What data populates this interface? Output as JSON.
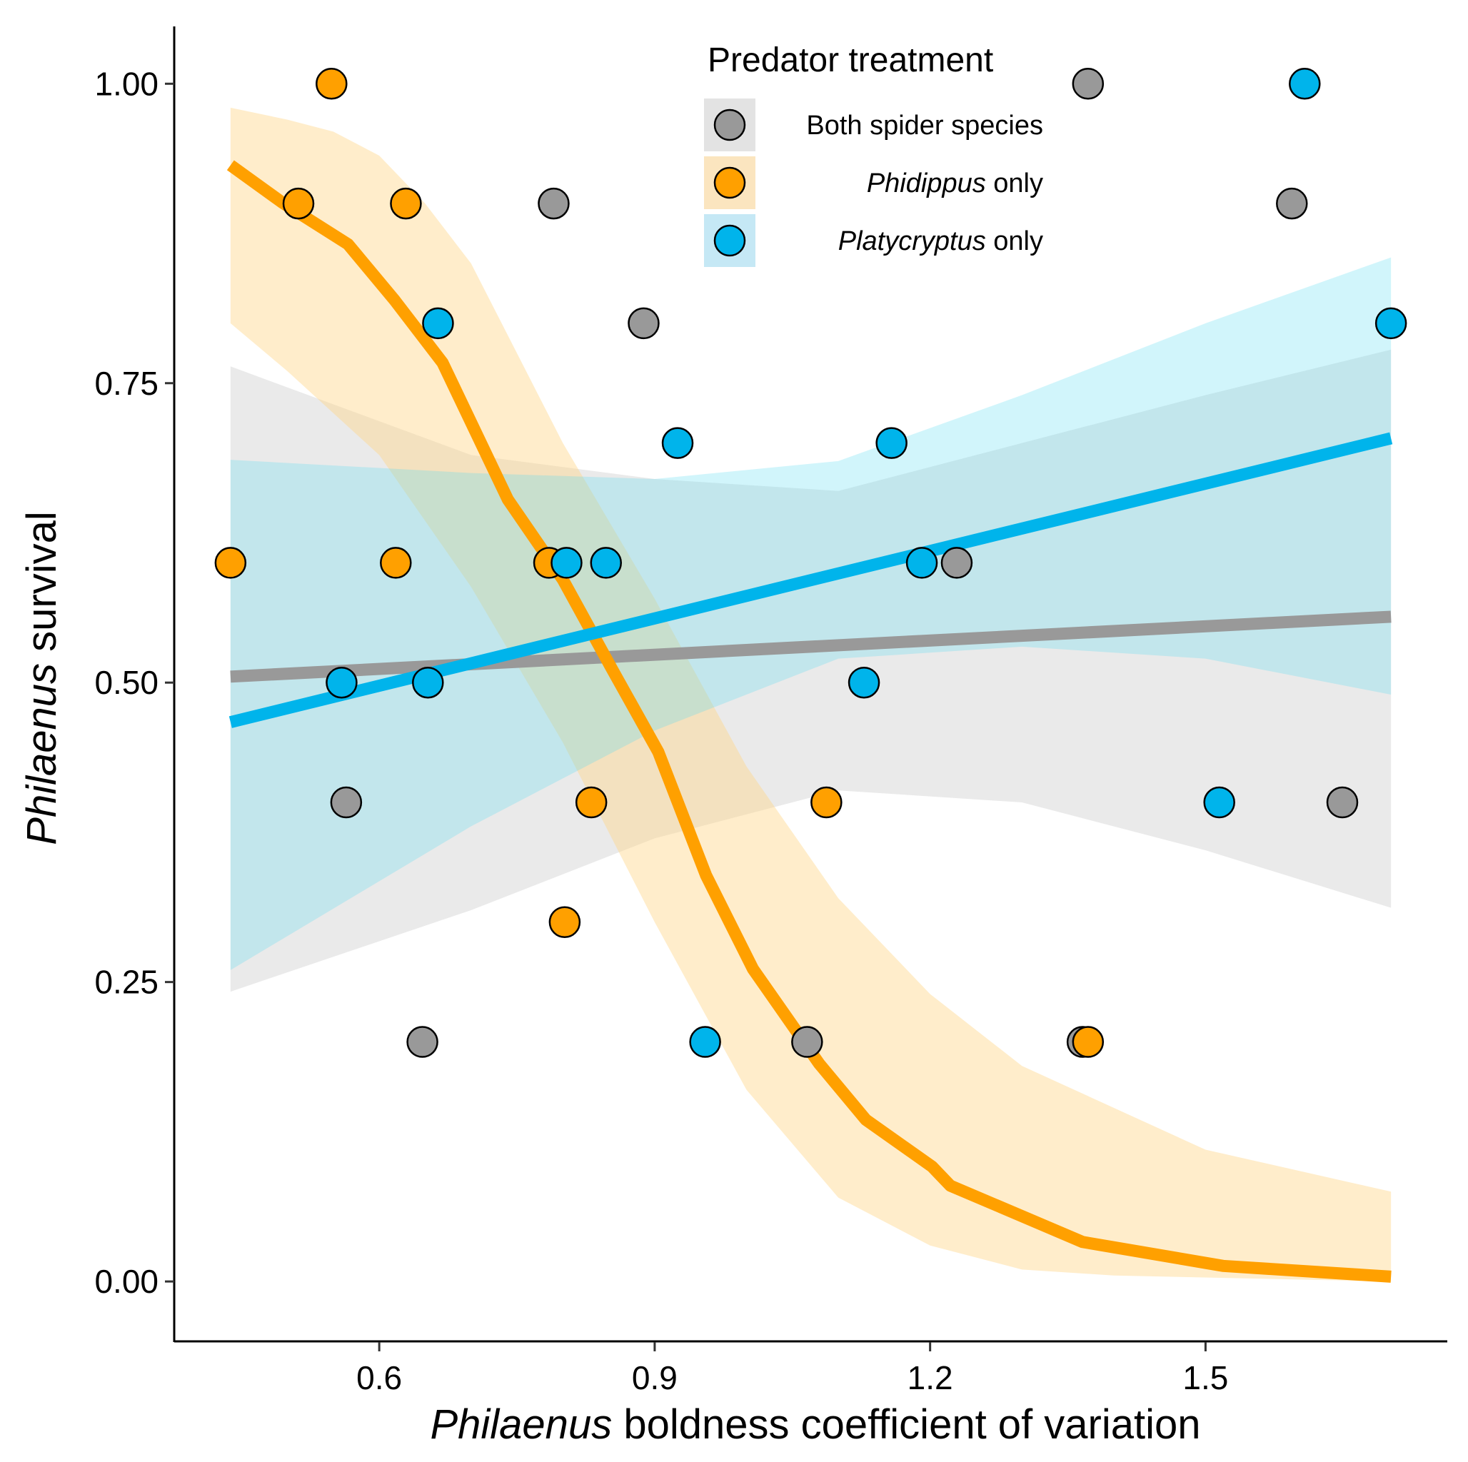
{
  "chart_data": {
    "type": "scatter",
    "title": "",
    "xlabel_italic": "Philaenus",
    "xlabel_rest": " boldness coefficient of variation",
    "ylabel_italic": "Philaenus",
    "ylabel_rest": " survival",
    "xlim": [
      0.377,
      1.763
    ],
    "ylim": [
      -0.05,
      1.048
    ],
    "xticks": [
      0.6,
      0.9,
      1.2,
      1.5
    ],
    "xtick_labels": [
      "0.6",
      "0.9",
      "1.2",
      "1.5"
    ],
    "yticks": [
      0,
      0.25,
      0.5,
      0.75,
      1.0
    ],
    "ytick_labels": [
      "0.00",
      "0.25",
      "0.50",
      "0.75",
      "1.00"
    ],
    "grid": false,
    "legend": {
      "title": "Predator treatment",
      "placement": "top-right",
      "items": [
        {
          "italic": "",
          "rest": "Both spider species"
        },
        {
          "italic": "Phidippus",
          "rest": " only"
        },
        {
          "italic": "Platycryptus",
          "rest": " only"
        }
      ]
    },
    "series": [
      {
        "name": "Both spider species",
        "color": "#999999",
        "band_color": "rgba(200,200,200,0.38)",
        "points": [
          [
            1.372,
            1.0
          ],
          [
            0.79,
            0.9
          ],
          [
            1.594,
            0.9
          ],
          [
            0.888,
            0.8
          ],
          [
            1.229,
            0.6
          ],
          [
            0.564,
            0.4
          ],
          [
            1.649,
            0.4
          ],
          [
            0.647,
            0.2
          ],
          [
            1.066,
            0.2
          ],
          [
            1.366,
            0.2
          ]
        ],
        "fit": [
          [
            0.438,
            0.505
          ],
          [
            1.702,
            0.555
          ]
        ],
        "ci_upper": [
          [
            0.438,
            0.764
          ],
          [
            0.7,
            0.69
          ],
          [
            0.9,
            0.67
          ],
          [
            1.1,
            0.66
          ],
          [
            1.3,
            0.7
          ],
          [
            1.5,
            0.74
          ],
          [
            1.702,
            0.778
          ]
        ],
        "ci_lower": [
          [
            0.438,
            0.242
          ],
          [
            0.7,
            0.31
          ],
          [
            0.9,
            0.37
          ],
          [
            1.1,
            0.41
          ],
          [
            1.3,
            0.4
          ],
          [
            1.5,
            0.36
          ],
          [
            1.702,
            0.312
          ]
        ]
      },
      {
        "name": "Phidippus only",
        "color": "#FFA000",
        "band_color": "rgba(255,214,140,0.45)",
        "points": [
          [
            0.548,
            1.0
          ],
          [
            0.512,
            0.9
          ],
          [
            0.629,
            0.9
          ],
          [
            0.438,
            0.6
          ],
          [
            0.618,
            0.6
          ],
          [
            0.785,
            0.6
          ],
          [
            0.831,
            0.4
          ],
          [
            1.087,
            0.4
          ],
          [
            0.802,
            0.3
          ],
          [
            1.372,
            0.2
          ]
        ],
        "fit": [
          [
            0.438,
            0.932
          ],
          [
            0.494,
            0.901
          ],
          [
            0.566,
            0.866
          ],
          [
            0.617,
            0.819
          ],
          [
            0.669,
            0.767
          ],
          [
            0.74,
            0.653
          ],
          [
            0.8,
            0.586
          ],
          [
            0.853,
            0.512
          ],
          [
            0.904,
            0.442
          ],
          [
            0.956,
            0.339
          ],
          [
            1.007,
            0.261
          ],
          [
            1.079,
            0.182
          ],
          [
            1.13,
            0.135
          ],
          [
            1.202,
            0.096
          ],
          [
            1.222,
            0.08
          ],
          [
            1.366,
            0.033
          ],
          [
            1.519,
            0.013
          ],
          [
            1.702,
            0.004
          ]
        ],
        "ci_upper": [
          [
            0.438,
            0.98
          ],
          [
            0.5,
            0.97
          ],
          [
            0.55,
            0.96
          ],
          [
            0.6,
            0.94
          ],
          [
            0.65,
            0.9
          ],
          [
            0.7,
            0.85
          ],
          [
            0.8,
            0.7
          ],
          [
            0.9,
            0.57
          ],
          [
            1.0,
            0.43
          ],
          [
            1.1,
            0.32
          ],
          [
            1.2,
            0.24
          ],
          [
            1.3,
            0.18
          ],
          [
            1.5,
            0.11
          ],
          [
            1.702,
            0.075
          ]
        ],
        "ci_lower": [
          [
            0.438,
            0.8
          ],
          [
            0.5,
            0.76
          ],
          [
            0.6,
            0.69
          ],
          [
            0.7,
            0.58
          ],
          [
            0.8,
            0.45
          ],
          [
            0.9,
            0.3
          ],
          [
            1.0,
            0.16
          ],
          [
            1.1,
            0.07
          ],
          [
            1.2,
            0.03
          ],
          [
            1.3,
            0.01
          ],
          [
            1.4,
            0.005
          ],
          [
            1.702,
            0.0
          ]
        ]
      },
      {
        "name": "Platycryptus only",
        "color": "#00B4EB",
        "band_color": "rgba(90,220,240,0.28)",
        "points": [
          [
            1.608,
            1.0
          ],
          [
            0.664,
            0.8
          ],
          [
            1.702,
            0.8
          ],
          [
            0.925,
            0.7
          ],
          [
            1.158,
            0.7
          ],
          [
            0.804,
            0.6
          ],
          [
            0.847,
            0.6
          ],
          [
            1.191,
            0.6
          ],
          [
            0.559,
            0.5
          ],
          [
            0.653,
            0.5
          ],
          [
            1.128,
            0.5
          ],
          [
            1.515,
            0.4
          ],
          [
            0.955,
            0.2
          ]
        ],
        "fit": [
          [
            0.438,
            0.467
          ],
          [
            1.702,
            0.704
          ]
        ],
        "ci_upper": [
          [
            0.438,
            0.686
          ],
          [
            0.7,
            0.675
          ],
          [
            0.9,
            0.67
          ],
          [
            1.1,
            0.685
          ],
          [
            1.3,
            0.74
          ],
          [
            1.5,
            0.8
          ],
          [
            1.702,
            0.855
          ]
        ],
        "ci_lower": [
          [
            0.438,
            0.26
          ],
          [
            0.7,
            0.38
          ],
          [
            0.9,
            0.46
          ],
          [
            1.1,
            0.52
          ],
          [
            1.3,
            0.53
          ],
          [
            1.5,
            0.52
          ],
          [
            1.702,
            0.49
          ]
        ]
      }
    ]
  }
}
